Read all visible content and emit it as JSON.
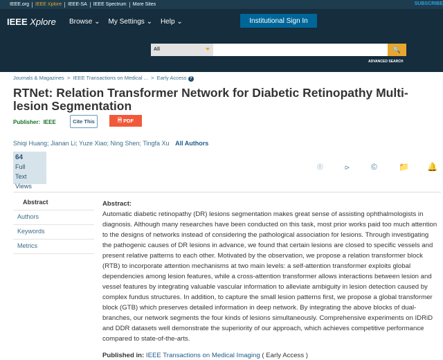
{
  "topbar": {
    "links": [
      "IEEE.org",
      "IEEE Xplore",
      "IEEE-SA",
      "IEEE Spectrum",
      "More Sites"
    ],
    "subscribe": "SUBSCRIBE"
  },
  "header": {
    "logo_main": "IEEE",
    "logo_sub": "Xplore",
    "nav": [
      "Browse",
      "My Settings",
      "Help"
    ],
    "signin": "Institutional Sign In",
    "search_select": "All",
    "advanced": "ADVANCED SEARCH"
  },
  "breadcrumb": [
    "Journals & Magazines",
    "IEEE Transactions on Medical ...",
    "Early Access"
  ],
  "title": "RTNet: Relation Transformer Network for Diabetic Retinopathy Multi-lesion Segmentation",
  "publisher_label": "Publisher:",
  "publisher": "IEEE",
  "cite": "Cite This",
  "pdf": "PDF",
  "authors": [
    "Shiqi Huang",
    "Jianan Li",
    "Yuze Xiao",
    "Ning Shen",
    "Tingfa Xu"
  ],
  "all_authors": "All Authors",
  "metric": {
    "count": "64",
    "label1": "Full",
    "label2": "Text Views"
  },
  "leftnav": [
    "Abstract",
    "Authors",
    "Keywords",
    "Metrics"
  ],
  "abstract": {
    "heading": "Abstract:",
    "text": "Automatic diabetic retinopathy (DR) lesions segmentation makes great sense of assisting ophthalmologists in diagnosis. Although many researches have been conducted on this task, most prior works paid too much attention to the designs of networks instead of considering the pathological association for lesions. Through investigating the pathogenic causes of DR lesions in advance, we found that certain lesions are closed to specific vessels and present relative patterns to each other. Motivated by the observation, we propose a relation transformer block (RTB) to incorporate attention mechanisms at two main levels: a self-attention transformer exploits global dependencies among lesion features, while a cross-attention transformer allows interactions between lesion and vessel features by integrating valuable vascular information to alleviate ambiguity in lesion detection caused by complex fundus structures. In addition, to capture the small lesion patterns first, we propose a global transformer block (GTB) which preserves detailed information in deep network. By integrating the above blocks of dual-branches, our network segments the four kinds of lesions simultaneously. Comprehensive experiments on IDRiD and DDR datasets well demonstrate the superiority of our approach, which achieves competitive performance compared to state-of-the-arts."
  },
  "published": {
    "label": "Published in:",
    "journal": "IEEE Transactions on Medical Imaging",
    "status": "( Early Access )"
  }
}
